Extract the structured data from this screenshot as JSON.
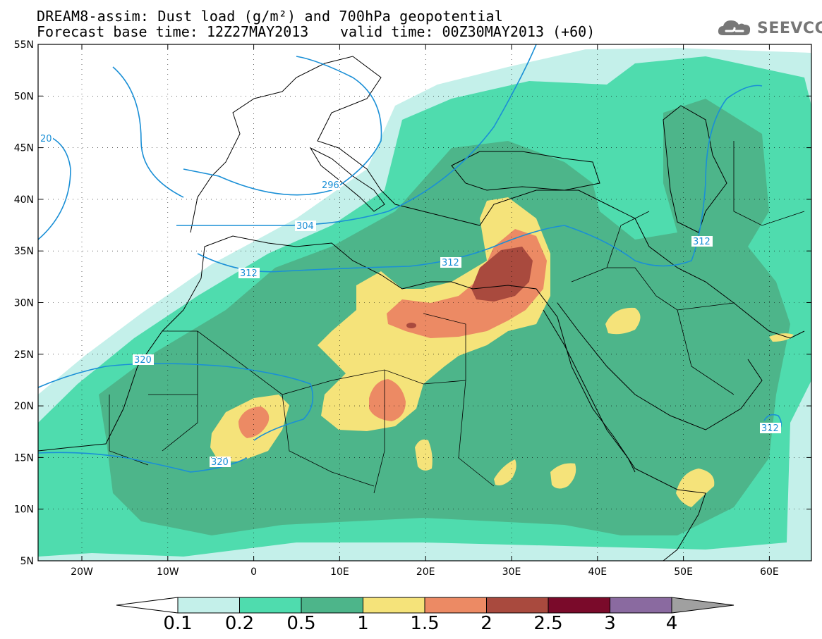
{
  "title": {
    "line1": "DREAM8-assim: Dust load (g/m²) and 700hPa geopotential",
    "base_time": "Forecast base time: 12Z27MAY2013",
    "valid_time": "valid time: 00Z30MAY2013 (+60)"
  },
  "logo": {
    "text": "SEEVCCC",
    "icon": "cloud-icon"
  },
  "axes": {
    "lat_labels": [
      "55N",
      "50N",
      "45N",
      "40N",
      "35N",
      "30N",
      "25N",
      "20N",
      "15N",
      "10N",
      "5N"
    ],
    "lon_labels": [
      "20W",
      "10W",
      "0",
      "10E",
      "20E",
      "30E",
      "40E",
      "50E",
      "60E"
    ]
  },
  "isolines": {
    "labels": [
      "20",
      "296",
      "304",
      "312",
      "312",
      "312",
      "320",
      "320",
      "312"
    ],
    "color": "#1a8fd6"
  },
  "colorbar": {
    "ticks": [
      "0.1",
      "0.2",
      "0.5",
      "1",
      "1.5",
      "2",
      "2.5",
      "3",
      "4"
    ],
    "colors": [
      "#c4f0ea",
      "#4fdcae",
      "#4db58a",
      "#f5e37a",
      "#ec8a64",
      "#a94a3e",
      "#7a0a2a",
      "#8a6aa0",
      "#a0a0a0"
    ]
  },
  "map_colors": {
    "land_bg": "#ffffff",
    "level_0_1": "#c4f0ea",
    "level_0_2": "#4fdcae",
    "level_0_5": "#4db58a",
    "level_1": "#f5e37a",
    "level_1_5": "#ec8a64",
    "level_2": "#a94a3e"
  }
}
